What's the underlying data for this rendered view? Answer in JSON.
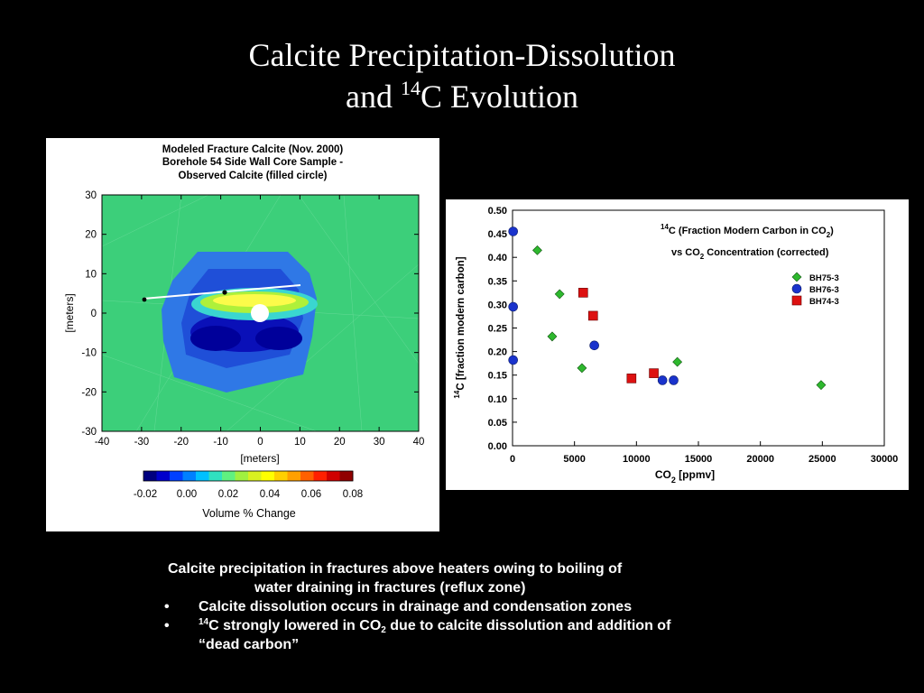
{
  "slide": {
    "title_line1": "Calcite Precipitation-Dissolution",
    "title_line2_pre": "and ",
    "title_line2_sup": "14",
    "title_line2_post": "C Evolution"
  },
  "contour_plot": {
    "title_lines": [
      "Modeled Fracture Calcite (Nov. 2000)",
      "Borehole 54 Side Wall Core Sample -",
      "Observed Calcite (filled circle)"
    ],
    "xlabel": "[meters]",
    "ylabel": "[meters]",
    "x_ticks": [
      "-40",
      "-30",
      "-20",
      "-10",
      "0",
      "10",
      "20",
      "30",
      "40"
    ],
    "y_ticks": [
      "30",
      "20",
      "10",
      "0",
      "-10",
      "-20",
      "-30"
    ],
    "colorbar_ticks": [
      "-0.02",
      "0.00",
      "0.02",
      "0.04",
      "0.06",
      "0.08"
    ],
    "colorbar_label": "Volume % Change",
    "colors": {
      "background": "#33cc77",
      "low": "#0000cc",
      "high": "#ffff33"
    }
  },
  "chart_data": {
    "type": "scatter",
    "title_line1_sup": "14",
    "title_line1": "C (Fraction Modern Carbon in CO",
    "title_line1_sub": "2",
    "title_line1_end": ")",
    "title_line2": "vs CO",
    "title_line2_sub": "2",
    "title_line2_end": " Concentration (corrected)",
    "xlabel": "CO",
    "xlabel_sub": "2",
    "xlabel_end": " [ppmv]",
    "ylabel_sup": "14",
    "ylabel": "C [fraction modern carbon]",
    "xlim": [
      0,
      30000
    ],
    "ylim": [
      0,
      0.5
    ],
    "x_ticks": [
      "0",
      "5000",
      "10000",
      "15000",
      "20000",
      "25000",
      "30000"
    ],
    "y_ticks": [
      "0.00",
      "0.05",
      "0.10",
      "0.15",
      "0.20",
      "0.25",
      "0.30",
      "0.35",
      "0.40",
      "0.45",
      "0.50"
    ],
    "legend_position": "top-right",
    "series": [
      {
        "name": "BH75-3",
        "marker": "diamond",
        "color": "#2eb82e",
        "points": [
          [
            2000,
            0.415
          ],
          [
            3800,
            0.322
          ],
          [
            3200,
            0.232
          ],
          [
            5600,
            0.165
          ],
          [
            13300,
            0.178
          ],
          [
            24900,
            0.129
          ]
        ]
      },
      {
        "name": "BH76-3",
        "marker": "circle",
        "color": "#1a33cc",
        "points": [
          [
            50,
            0.455
          ],
          [
            50,
            0.295
          ],
          [
            50,
            0.182
          ],
          [
            6600,
            0.213
          ],
          [
            12100,
            0.139
          ],
          [
            13000,
            0.139
          ]
        ]
      },
      {
        "name": "BH74-3",
        "marker": "square",
        "color": "#dd1111",
        "points": [
          [
            5700,
            0.325
          ],
          [
            6500,
            0.276
          ],
          [
            9600,
            0.143
          ],
          [
            11400,
            0.154
          ]
        ]
      }
    ]
  },
  "bullets": {
    "intro_line1": "Calcite precipitation in fractures above heaters owing to boiling of",
    "intro_line2": "water draining in fractures (reflux zone)",
    "bullet_char": "•",
    "item1": "Calcite dissolution occurs in drainage and condensation zones",
    "item2_sup": "14",
    "item2_a": "C strongly lowered in CO",
    "item2_sub": "2",
    "item2_b": " due to calcite dissolution and addition of",
    "item2_line2": "“dead carbon”"
  }
}
